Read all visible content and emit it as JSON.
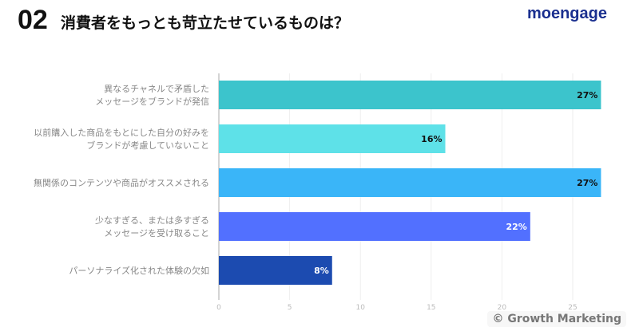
{
  "header": {
    "number": "02",
    "title": "消費者をもっとも苛立たせているものは？",
    "logo": "moengage"
  },
  "footer": {
    "credit": "© Growth Marketing"
  },
  "chart_data": {
    "type": "bar",
    "orientation": "horizontal",
    "categories": [
      [
        "異なるチャネルで矛盾した",
        "メッセージをブランドが発信"
      ],
      [
        "以前購入した商品をもとにした自分の好みを",
        "ブランドが考慮していないこと"
      ],
      [
        "無関係のコンテンツや商品がオススメされる"
      ],
      [
        "少なすぎる、または多すぎる",
        "メッセージを受け取ること"
      ],
      [
        "パーソナライズ化された体験の欠如"
      ]
    ],
    "values": [
      27,
      16,
      27,
      22,
      8
    ],
    "labels": [
      "27%",
      "16%",
      "27%",
      "22%",
      "8%"
    ],
    "colors": [
      "#3cc4cc",
      "#5ee1e8",
      "#3ab5f8",
      "#5270ff",
      "#1c4bb0"
    ],
    "label_colors": [
      "#111",
      "#111",
      "#111",
      "#fff",
      "#fff"
    ],
    "xlim": [
      0,
      27
    ],
    "xticks": [
      0,
      5,
      10,
      15,
      20,
      25
    ],
    "grid": true
  }
}
